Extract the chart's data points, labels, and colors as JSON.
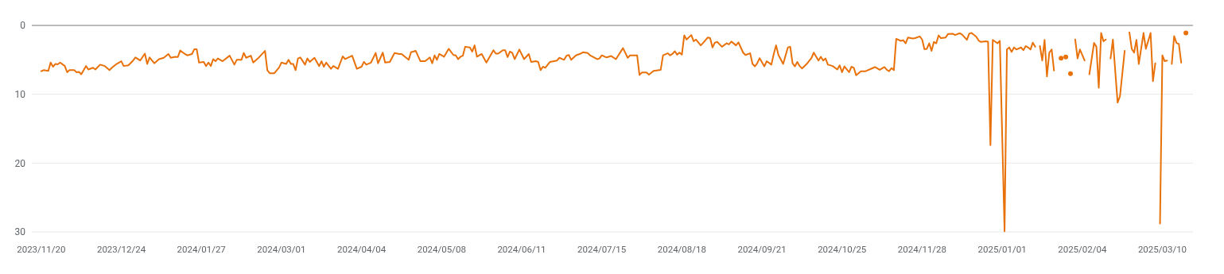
{
  "chart_data": {
    "type": "line",
    "xlim": [
      "2023-11-16",
      "2025-03-23"
    ],
    "ylim": [
      30,
      0
    ],
    "yticks": [
      0,
      10,
      20,
      30
    ],
    "xticks": [
      {
        "value": "2023-11-20",
        "label": "2023/11/20"
      },
      {
        "value": "2023-12-24",
        "label": "2023/12/24"
      },
      {
        "value": "2024-01-27",
        "label": "2024/01/27"
      },
      {
        "value": "2024-03-01",
        "label": "2024/03/01"
      },
      {
        "value": "2024-04-04",
        "label": "2024/04/04"
      },
      {
        "value": "2024-05-08",
        "label": "2024/05/08"
      },
      {
        "value": "2024-06-11",
        "label": "2024/06/11"
      },
      {
        "value": "2024-07-15",
        "label": "2024/07/15"
      },
      {
        "value": "2024-08-18",
        "label": "2024/08/18"
      },
      {
        "value": "2024-09-21",
        "label": "2024/09/21"
      },
      {
        "value": "2024-10-25",
        "label": "2024/10/25"
      },
      {
        "value": "2024-11-28",
        "label": "2024/11/28"
      },
      {
        "value": "2025-01-01",
        "label": "2025/01/01"
      },
      {
        "value": "2025-02-04",
        "label": "2025/02/04"
      },
      {
        "value": "2025-03-10",
        "label": "2025/03/10"
      }
    ],
    "grid": "y",
    "series": [
      {
        "color": "#e8710a",
        "x": [
          "2023-11-20",
          "2023-11-21",
          "2023-11-23",
          "2023-11-24",
          "2023-11-25",
          "2023-11-26",
          "2023-11-27",
          "2023-11-28",
          "2023-11-30",
          "2023-12-01",
          "2023-12-02",
          "2023-12-04",
          "2023-12-05",
          "2023-12-06",
          "2023-12-07",
          "2023-12-09",
          "2023-12-10",
          "2023-12-12",
          "2023-12-13",
          "2023-12-15",
          "2023-12-17",
          "2023-12-19",
          "2023-12-20",
          "2023-12-22",
          "2023-12-24",
          "2023-12-25",
          "2023-12-27",
          "2023-12-29",
          "2023-12-30",
          "2024-01-01",
          "2024-01-03",
          "2024-01-04",
          "2024-01-05",
          "2024-01-07",
          "2024-01-09",
          "2024-01-11",
          "2024-01-13",
          "2024-01-14",
          "2024-01-16",
          "2024-01-17",
          "2024-01-18",
          "2024-01-20",
          "2024-01-21",
          "2024-01-23",
          "2024-01-24",
          "2024-01-25",
          "2024-01-26",
          "2024-01-28",
          "2024-01-29",
          "2024-01-30",
          "2024-01-31",
          "2024-02-01",
          "2024-02-02",
          "2024-02-03",
          "2024-02-05",
          "2024-02-08",
          "2024-02-10",
          "2024-02-11",
          "2024-02-13",
          "2024-02-14",
          "2024-02-15",
          "2024-02-17",
          "2024-02-18",
          "2024-02-20",
          "2024-02-23",
          "2024-02-24",
          "2024-02-25",
          "2024-02-27",
          "2024-02-29",
          "2024-03-01",
          "2024-03-03",
          "2024-03-04",
          "2024-03-05",
          "2024-03-06",
          "2024-03-07",
          "2024-03-08",
          "2024-03-09",
          "2024-03-11",
          "2024-03-12",
          "2024-03-13",
          "2024-03-15",
          "2024-03-17",
          "2024-03-18",
          "2024-03-19",
          "2024-03-20",
          "2024-03-22",
          "2024-03-23",
          "2024-03-25",
          "2024-03-27",
          "2024-03-28",
          "2024-03-31",
          "2024-04-02",
          "2024-04-04",
          "2024-04-05",
          "2024-04-06",
          "2024-04-08",
          "2024-04-10",
          "2024-04-11",
          "2024-04-13",
          "2024-04-14",
          "2024-04-16",
          "2024-04-18",
          "2024-04-20",
          "2024-04-21",
          "2024-04-24",
          "2024-04-25",
          "2024-04-27",
          "2024-04-29",
          "2024-05-01",
          "2024-05-03",
          "2024-05-04",
          "2024-05-05",
          "2024-05-06",
          "2024-05-07",
          "2024-05-09",
          "2024-05-11",
          "2024-05-13",
          "2024-05-14",
          "2024-05-15",
          "2024-05-16",
          "2024-05-17",
          "2024-05-18",
          "2024-05-20",
          "2024-05-21",
          "2024-05-22",
          "2024-05-23",
          "2024-05-25",
          "2024-05-27",
          "2024-05-30",
          "2024-05-31",
          "2024-06-01",
          "2024-06-03",
          "2024-06-04",
          "2024-06-05",
          "2024-06-06",
          "2024-06-07",
          "2024-06-08",
          "2024-06-10",
          "2024-06-12",
          "2024-06-14",
          "2024-06-15",
          "2024-06-17",
          "2024-06-18",
          "2024-06-19",
          "2024-06-20",
          "2024-06-21",
          "2024-06-23",
          "2024-06-26",
          "2024-06-27",
          "2024-06-29",
          "2024-06-30",
          "2024-07-01",
          "2024-07-02",
          "2024-07-04",
          "2024-07-06",
          "2024-07-07",
          "2024-07-09",
          "2024-07-10",
          "2024-07-13",
          "2024-07-14",
          "2024-07-15",
          "2024-07-17",
          "2024-07-19",
          "2024-07-21",
          "2024-07-24",
          "2024-07-26",
          "2024-07-27",
          "2024-07-30",
          "2024-07-31",
          "2024-08-01",
          "2024-08-03",
          "2024-08-04",
          "2024-08-06",
          "2024-08-09",
          "2024-08-10",
          "2024-08-12",
          "2024-08-13",
          "2024-08-14",
          "2024-08-15",
          "2024-08-16",
          "2024-08-17",
          "2024-08-18",
          "2024-08-19",
          "2024-08-20",
          "2024-08-22",
          "2024-08-23",
          "2024-08-24",
          "2024-08-26",
          "2024-08-27",
          "2024-08-29",
          "2024-08-30",
          "2024-08-31",
          "2024-09-01",
          "2024-09-02",
          "2024-09-04",
          "2024-09-06",
          "2024-09-07",
          "2024-09-08",
          "2024-09-10",
          "2024-09-11",
          "2024-09-13",
          "2024-09-14",
          "2024-09-16",
          "2024-09-17",
          "2024-09-18",
          "2024-09-19",
          "2024-09-20",
          "2024-09-22",
          "2024-09-23",
          "2024-09-25",
          "2024-09-26",
          "2024-09-27",
          "2024-09-28",
          "2024-09-30",
          "2024-10-02",
          "2024-10-03",
          "2024-10-04",
          "2024-10-05",
          "2024-10-06",
          "2024-10-07",
          "2024-10-08",
          "2024-10-10",
          "2024-10-12",
          "2024-10-13",
          "2024-10-15",
          "2024-10-16",
          "2024-10-17",
          "2024-10-18",
          "2024-10-19",
          "2024-10-21",
          "2024-10-23",
          "2024-10-24",
          "2024-10-25",
          "2024-10-26",
          "2024-10-28",
          "2024-10-29",
          "2024-10-30",
          "2024-10-31",
          "2024-11-02",
          "2024-11-04",
          "2024-11-07",
          "2024-11-08",
          "2024-11-10",
          "2024-11-12",
          "2024-11-13",
          "2024-11-14",
          "2024-11-15",
          "2024-11-16",
          "2024-11-17",
          "2024-11-19",
          "2024-11-20",
          "2024-11-21",
          "2024-11-22",
          "2024-11-24",
          "2024-11-25",
          "2024-11-27",
          "2024-11-28",
          "2024-11-29",
          "2024-11-30",
          "2024-12-01",
          "2024-12-02",
          "2024-12-03",
          "2024-12-04",
          "2024-12-05",
          "2024-12-06",
          "2024-12-08",
          "2024-12-09",
          "2024-12-11",
          "2024-12-12",
          "2024-12-13",
          "2024-12-14",
          "2024-12-15",
          "2024-12-17",
          "2024-12-18",
          "2024-12-19",
          "2024-12-21",
          "2024-12-22",
          "2024-12-23",
          "2024-12-25",
          "2024-12-26",
          "2024-12-27",
          "2024-12-28",
          "2024-12-30",
          "2024-12-31",
          "2025-01-02",
          "2025-01-03",
          "2025-01-04",
          "2025-01-05",
          "2025-01-06",
          "2025-01-07",
          "2025-01-09",
          "2025-01-10",
          "2025-01-11",
          "2025-01-12",
          "2025-01-13",
          "2025-01-14",
          "2025-01-15",
          "2025-01-16",
          "2025-01-17",
          "2025-01-18",
          "2025-01-19",
          "2025-01-20",
          "2025-01-21",
          "2025-01-22",
          "2025-01-23",
          "2025-01-24",
          "2025-01-26",
          "2025-01-27",
          "2025-01-28",
          "2025-01-29",
          "2025-01-30",
          "2025-01-31",
          "2025-02-01",
          "2025-02-02",
          "2025-02-03",
          "2025-02-05",
          "2025-02-06",
          "2025-02-07",
          "2025-02-09",
          "2025-02-10",
          "2025-02-11",
          "2025-02-12",
          "2025-02-13",
          "2025-02-14",
          "2025-02-15",
          "2025-02-16",
          "2025-02-17",
          "2025-02-19",
          "2025-02-20",
          "2025-02-22",
          "2025-02-23",
          "2025-02-24",
          "2025-02-25",
          "2025-02-26",
          "2025-02-27",
          "2025-02-28",
          "2025-03-02",
          "2025-03-03",
          "2025-03-05",
          "2025-03-06",
          "2025-03-07",
          "2025-03-08",
          "2025-03-09",
          "2025-03-10",
          "2025-03-11",
          "2025-03-12",
          "2025-03-13",
          "2025-03-14",
          "2025-03-15",
          "2025-03-16",
          "2025-03-17",
          "2025-03-18"
        ],
        "values": [
          6.65,
          6.5,
          6.6,
          5.4,
          6.0,
          5.6,
          5.65,
          5.4,
          5.9,
          6.8,
          6.5,
          6.5,
          6.8,
          6.75,
          7.1,
          5.9,
          6.4,
          6.15,
          6.4,
          5.7,
          5.9,
          6.5,
          6.15,
          5.6,
          5.2,
          5.9,
          5.8,
          5.1,
          4.65,
          5.1,
          4.1,
          5.6,
          4.65,
          5.5,
          4.9,
          4.7,
          4.15,
          4.7,
          4.55,
          4.6,
          3.65,
          4.15,
          4.35,
          4.15,
          3.45,
          3.45,
          5.4,
          5.3,
          5.9,
          5.4,
          5.9,
          4.9,
          5.2,
          4.8,
          5.2,
          4.4,
          5.7,
          5.0,
          5.0,
          4.0,
          4.7,
          4.4,
          5.4,
          4.8,
          3.7,
          6.5,
          6.95,
          6.95,
          6.1,
          5.4,
          5.6,
          5.0,
          5.6,
          5.6,
          6.5,
          4.8,
          4.65,
          5.7,
          4.8,
          5.3,
          4.7,
          5.9,
          5.2,
          6.0,
          5.4,
          6.3,
          5.9,
          6.3,
          4.5,
          4.9,
          4.4,
          6.3,
          6.0,
          5.3,
          5.7,
          5.4,
          4.0,
          5.5,
          3.95,
          5.4,
          5.3,
          4.0,
          4.15,
          4.15,
          5.0,
          3.9,
          3.7,
          5.2,
          5.2,
          4.65,
          5.5,
          4.35,
          5.0,
          4.15,
          4.55,
          3.4,
          4.3,
          4.35,
          4.9,
          4.55,
          4.4,
          3.1,
          3.2,
          3.8,
          2.9,
          4.55,
          4.15,
          5.4,
          3.6,
          4.1,
          4.1,
          3.6,
          3.6,
          4.6,
          3.8,
          4.0,
          4.9,
          3.5,
          4.9,
          4.15,
          5.3,
          5.2,
          5.3,
          6.5,
          6.0,
          6.15,
          5.3,
          5.1,
          4.7,
          5.0,
          4.4,
          4.3,
          5.0,
          4.35,
          4.1,
          3.9,
          4.0,
          4.35,
          4.9,
          4.8,
          4.35,
          4.65,
          4.45,
          4.9,
          3.3,
          4.7,
          4.35,
          4.35,
          7.2,
          6.85,
          6.85,
          7.15,
          6.6,
          6.45,
          4.35,
          4.05,
          4.35,
          4.15,
          3.75,
          4.25,
          3.95,
          4.25,
          1.45,
          2.05,
          1.4,
          2.3,
          2.05,
          2.9,
          2.55,
          1.75,
          1.85,
          3.2,
          2.5,
          2.4,
          3.1,
          2.6,
          2.75,
          2.35,
          2.9,
          2.45,
          3.95,
          4.3,
          4.05,
          5.6,
          5.95,
          5.5,
          4.75,
          5.95,
          5.2,
          5.7,
          4.15,
          2.9,
          4.3,
          5.6,
          3.2,
          3.1,
          5.5,
          5.95,
          5.3,
          5.9,
          6.25,
          5.6,
          4.75,
          3.95,
          5.1,
          4.55,
          5.1,
          4.8,
          5.7,
          5.9,
          6.4,
          5.8,
          6.8,
          5.95,
          6.8,
          6.0,
          6.15,
          7.25,
          6.65,
          6.65,
          6.2,
          6.05,
          6.45,
          6.05,
          6.45,
          6.65,
          6.2,
          6.5,
          1.95,
          2.25,
          2.15,
          2.6,
          1.75,
          1.9,
          1.85,
          1.6,
          2.05,
          3.45,
          3.4,
          2.6,
          3.7,
          2.4,
          2.6,
          1.45,
          1.85,
          1.75,
          1.25,
          1.2,
          1.4,
          1.25,
          1.15,
          1.35,
          2.1,
          1.2,
          1.1,
          1.65,
          2.2,
          2.4,
          2.3,
          2.35,
          17.4,
          2.1,
          2.6,
          2.25,
          29.9,
          3.5,
          3.2,
          3.85,
          3.2,
          3.5,
          3.2,
          3.6,
          3.0,
          3.2,
          3.5,
          2.5,
          3.1,
          null,
          3.0,
          5.1,
          2.1,
          7.4,
          3.95,
          3.5,
          6.55,
          null,
          null,
          null,
          null,
          null,
          null,
          null,
          2.05,
          4.8,
          3.5,
          5.1,
          null,
          7.1,
          2.55,
          3.1,
          9.05,
          1.1,
          2.3,
          2.05,
          null,
          4.8,
          2.05,
          11.2,
          10.3,
          3.7,
          null,
          1.0,
          3.4,
          3.95,
          2.1,
          5.6,
          1.1,
          3.4,
          1.1,
          8.1,
          5.5,
          null,
          28.8,
          4.35,
          5.2,
          5.1,
          null,
          5.6,
          1.55,
          2.55,
          2.7,
          5.4
        ]
      },
      {
        "type": "scatter",
        "color": "#e8710a",
        "x": [
          "2025-01-26",
          "2025-01-28",
          "2025-01-30",
          "2025-03-20"
        ],
        "values": [
          4.75,
          4.6,
          7.0,
          1.1
        ]
      }
    ]
  }
}
